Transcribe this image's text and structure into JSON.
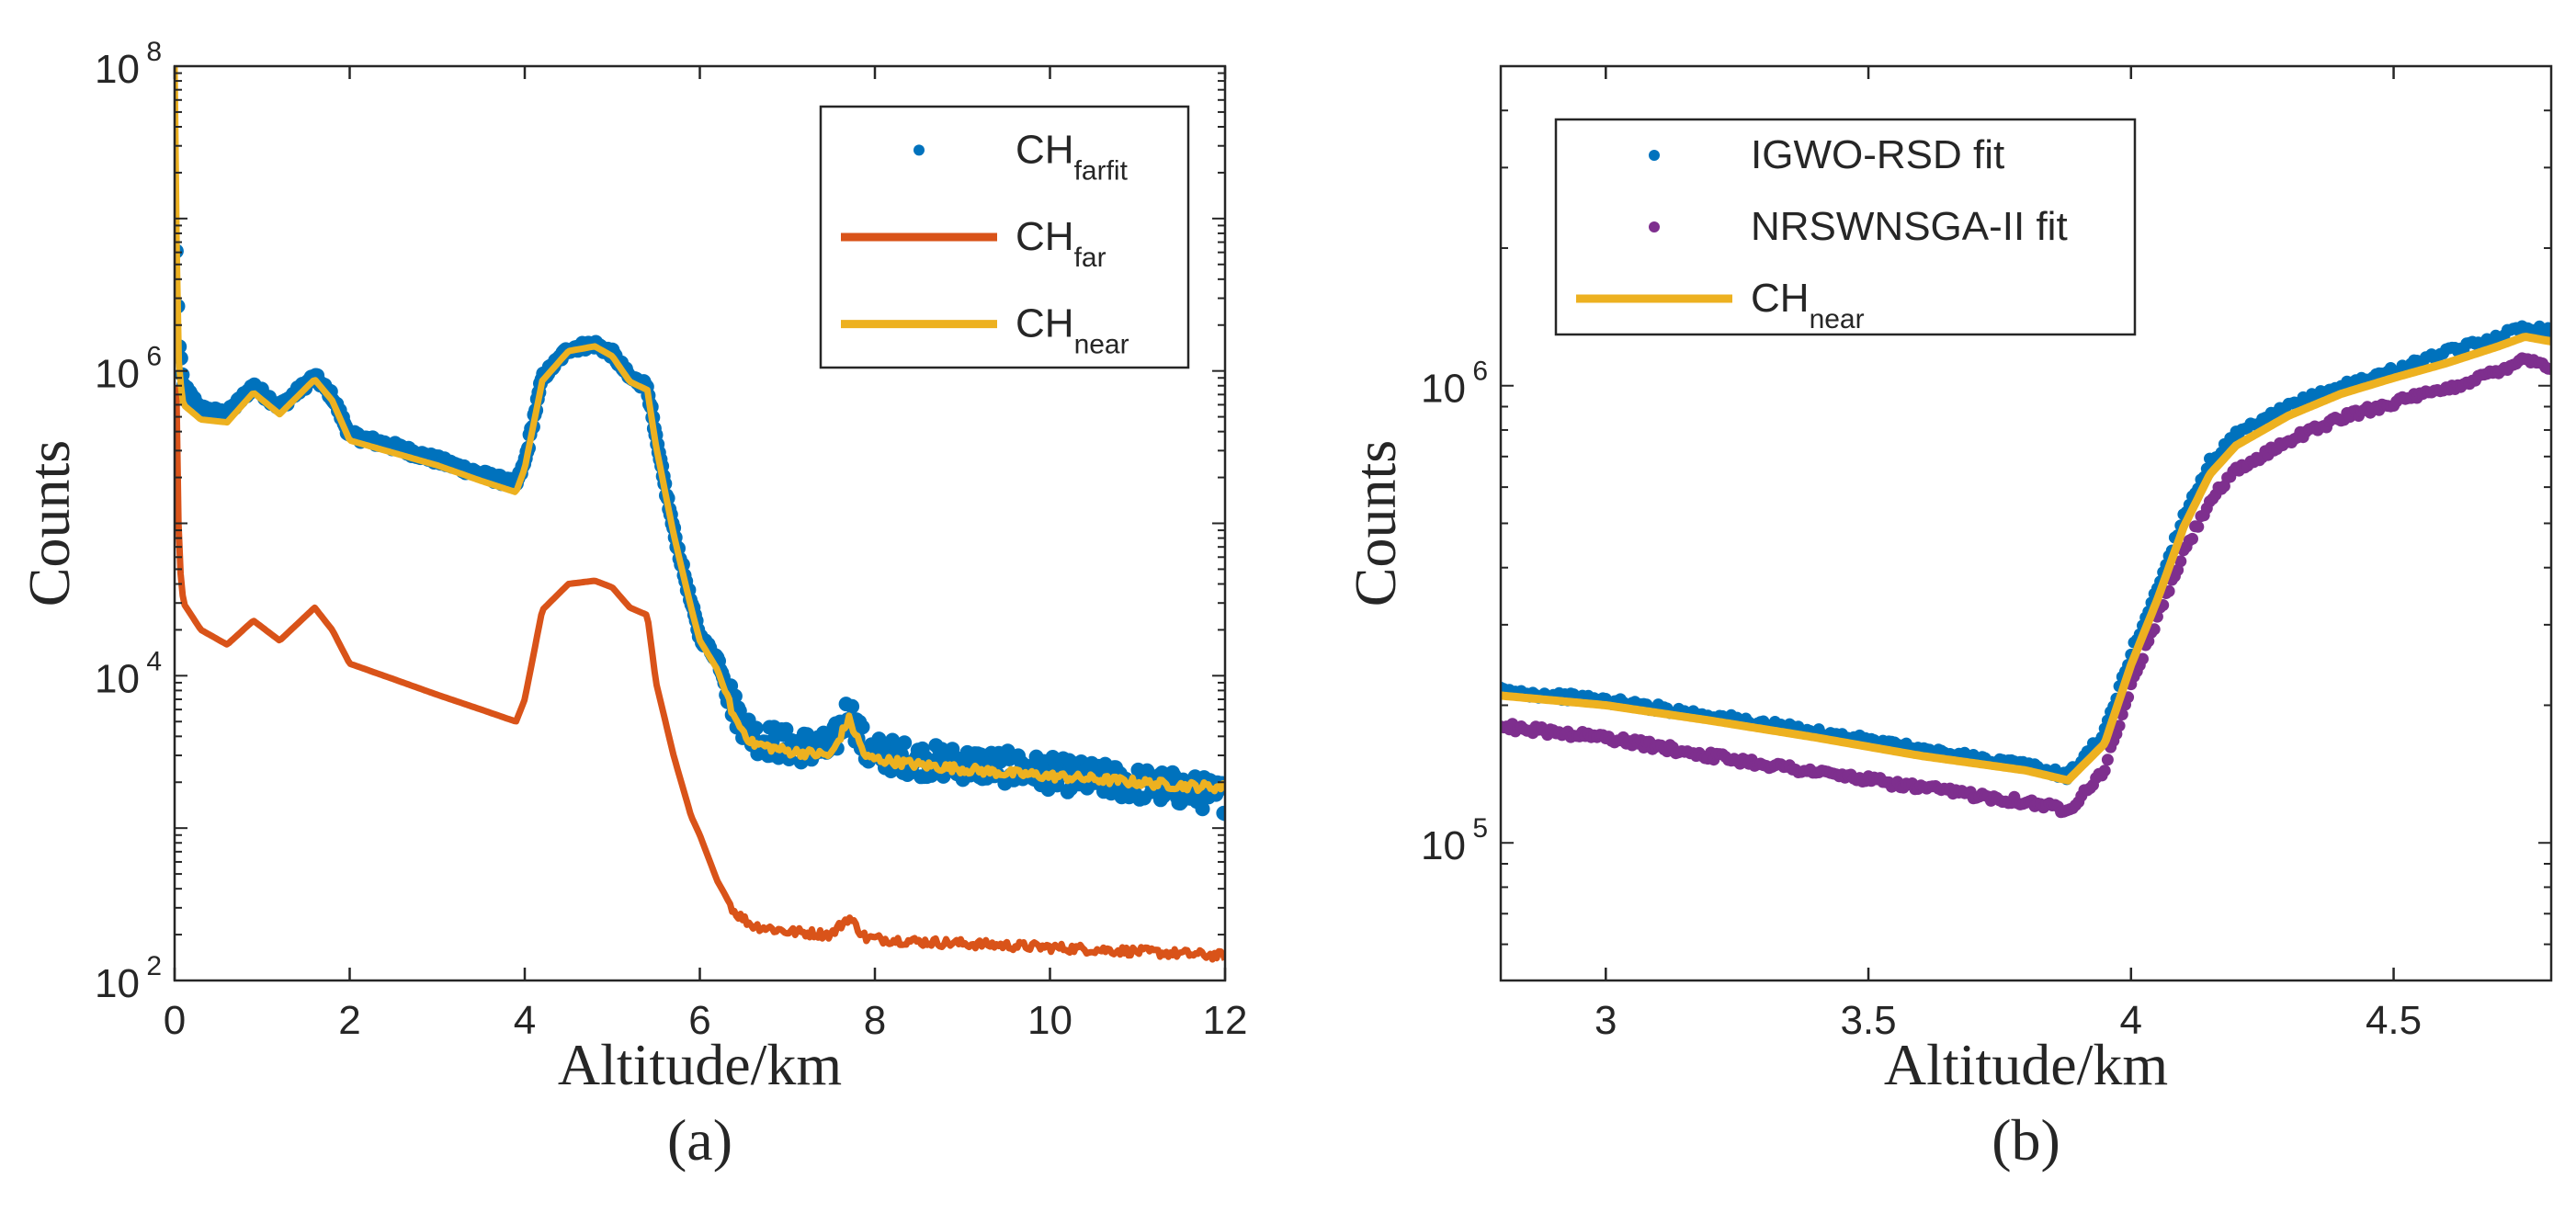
{
  "chart_data": [
    {
      "type": "line",
      "panel_label": "(a)",
      "xlabel": "Altitude/km",
      "ylabel": "Counts",
      "xlim": [
        0,
        12
      ],
      "ylim": [
        100,
        100000000
      ],
      "yscale": "log",
      "xticks": [
        "0",
        "2",
        "4",
        "6",
        "8",
        "10",
        "12"
      ],
      "yticks": [
        {
          "base": "10",
          "exp": "2",
          "value": 100
        },
        {
          "base": "10",
          "exp": "4",
          "value": 10000
        },
        {
          "base": "10",
          "exp": "6",
          "value": 1000000
        },
        {
          "base": "10",
          "exp": "8",
          "value": 100000000
        }
      ],
      "legend": {
        "location": "top-right",
        "entries": [
          {
            "main": "CH",
            "sub": "farfit",
            "style": "dots",
            "color": "#0072BD"
          },
          {
            "main": "CH",
            "sub": "far",
            "style": "line",
            "color": "#D95319"
          },
          {
            "main": "CH",
            "sub": "near",
            "style": "line",
            "color": "#EDB120"
          }
        ]
      },
      "series": [
        {
          "key": "farfit",
          "style": "dots",
          "color": "#0072BD",
          "x": [
            0.02,
            0.05,
            0.1,
            0.3,
            0.6,
            0.9,
            1.2,
            1.6,
            1.8,
            2.0,
            2.5,
            3.0,
            3.5,
            3.9,
            4.0,
            4.2,
            4.5,
            4.8,
            5.0,
            5.2,
            5.4,
            5.5,
            5.7,
            5.9,
            6.0,
            6.2,
            6.4,
            6.6,
            7.0,
            7.5,
            7.7,
            7.9,
            8.5,
            9.5,
            10.5,
            11.5,
            12.0
          ],
          "y": [
            6000000,
            1500000,
            800000,
            560000,
            520000,
            800000,
            580000,
            920000,
            680000,
            380000,
            320000,
            260000,
            210000,
            180000,
            250000,
            900000,
            1400000,
            1500000,
            1300000,
            900000,
            800000,
            350000,
            90000,
            30000,
            18000,
            13000,
            6000,
            4000,
            3500,
            3300,
            6000,
            3200,
            2800,
            2500,
            2100,
            1800,
            1600
          ]
        },
        {
          "key": "far",
          "style": "line",
          "color": "#D95319",
          "x": [
            0.02,
            0.05,
            0.1,
            0.3,
            0.6,
            0.9,
            1.2,
            1.6,
            1.8,
            2.0,
            2.5,
            3.0,
            3.5,
            3.9,
            4.0,
            4.2,
            4.5,
            4.8,
            5.0,
            5.2,
            5.4,
            5.5,
            5.7,
            5.9,
            6.0,
            6.2,
            6.4,
            6.6,
            7.0,
            7.5,
            7.7,
            7.9,
            8.5,
            9.5,
            10.5,
            11.5,
            12.0
          ],
          "y": [
            800000,
            60000,
            30000,
            20000,
            16000,
            23000,
            17000,
            28000,
            20000,
            12000,
            9500,
            7500,
            6000,
            5000,
            7000,
            27000,
            40000,
            42000,
            38000,
            28000,
            25000,
            9000,
            3000,
            1200,
            900,
            450,
            280,
            230,
            210,
            200,
            260,
            190,
            180,
            170,
            160,
            150,
            145
          ]
        },
        {
          "key": "near",
          "style": "line",
          "color": "#EDB120",
          "x": [
            0.0,
            0.02,
            0.05,
            0.1,
            0.3,
            0.6,
            0.9,
            1.2,
            1.6,
            1.8,
            2.0,
            2.5,
            3.0,
            3.5,
            3.9,
            4.0,
            4.2,
            4.5,
            4.8,
            5.0,
            5.2,
            5.4,
            5.5,
            5.7,
            5.9,
            6.0,
            6.2,
            6.4,
            6.6,
            7.0,
            7.5,
            7.7,
            7.9,
            8.5,
            9.5,
            10.5,
            11.5,
            12.0
          ],
          "y": [
            100000000,
            8000000,
            1000000,
            600000,
            480000,
            460000,
            720000,
            520000,
            880000,
            640000,
            350000,
            290000,
            240000,
            190000,
            160000,
            230000,
            860000,
            1350000,
            1450000,
            1250000,
            850000,
            750000,
            320000,
            85000,
            28000,
            17000,
            11000,
            5200,
            3600,
            3200,
            3000,
            5200,
            2900,
            2600,
            2300,
            2100,
            1900,
            1850
          ]
        }
      ]
    },
    {
      "type": "line",
      "panel_label": "(b)",
      "xlabel": "Altitude/km",
      "ylabel": "Counts",
      "xlim": [
        2.8,
        4.8
      ],
      "ylim": [
        50000,
        5000000
      ],
      "yscale": "log",
      "xticks": [
        "3",
        "3.5",
        "4",
        "4.5"
      ],
      "yticks": [
        {
          "base": "10",
          "exp": "5",
          "value": 100000
        },
        {
          "base": "10",
          "exp": "6",
          "value": 1000000
        }
      ],
      "legend": {
        "location": "top-left",
        "entries": [
          {
            "main": "IGWO-RSD fit",
            "sub": "",
            "style": "dots",
            "color": "#0072BD"
          },
          {
            "main": "NRSWNSGA-II fit",
            "sub": "",
            "style": "dots",
            "color": "#7E2F8E"
          },
          {
            "main": "CH",
            "sub": "near",
            "style": "line",
            "color": "#EDB120"
          }
        ]
      },
      "series": [
        {
          "key": "igwo",
          "style": "dots",
          "color": "#0072BD",
          "x": [
            2.8,
            3.0,
            3.2,
            3.4,
            3.6,
            3.8,
            3.88,
            3.95,
            4.0,
            4.05,
            4.1,
            4.15,
            4.2,
            4.3,
            4.4,
            4.5,
            4.6,
            4.7,
            4.75,
            4.8
          ],
          "y": [
            215000,
            205000,
            190000,
            175000,
            160000,
            148000,
            140000,
            175000,
            260000,
            360000,
            520000,
            680000,
            780000,
            900000,
            1000000,
            1080000,
            1180000,
            1280000,
            1350000,
            1320000
          ]
        },
        {
          "key": "nrswnsga",
          "style": "dots",
          "color": "#7E2F8E",
          "x": [
            2.8,
            3.0,
            3.2,
            3.4,
            3.6,
            3.8,
            3.88,
            3.95,
            4.0,
            4.05,
            4.1,
            4.15,
            4.2,
            4.3,
            4.4,
            4.5,
            4.6,
            4.7,
            4.75,
            4.8
          ],
          "y": [
            180000,
            170000,
            155000,
            143000,
            132000,
            123000,
            118000,
            145000,
            220000,
            310000,
            430000,
            560000,
            650000,
            760000,
            850000,
            920000,
            980000,
            1080000,
            1150000,
            1100000
          ]
        },
        {
          "key": "chnear",
          "style": "line",
          "color": "#EDB120",
          "x": [
            2.8,
            3.0,
            3.2,
            3.4,
            3.6,
            3.8,
            3.88,
            3.95,
            4.0,
            4.05,
            4.1,
            4.15,
            4.2,
            4.3,
            4.4,
            4.5,
            4.6,
            4.7,
            4.75,
            4.8
          ],
          "y": [
            210000,
            200000,
            185000,
            170000,
            155000,
            144000,
            137000,
            165000,
            245000,
            340000,
            490000,
            640000,
            740000,
            860000,
            960000,
            1040000,
            1120000,
            1220000,
            1280000,
            1250000
          ]
        }
      ]
    }
  ]
}
